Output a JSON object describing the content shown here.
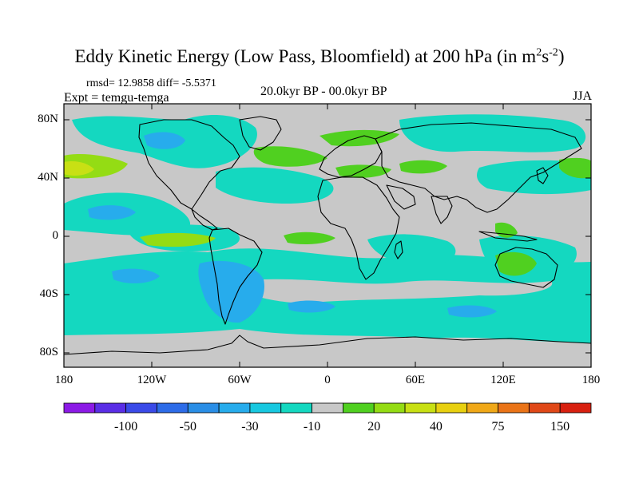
{
  "title": {
    "main": "Eddy Kinetic Energy (Low Pass, Bloomfield) at 200 hPa (in m",
    "sup1": "2",
    "mid": "s",
    "sup2": "-2",
    "end": ")"
  },
  "stats": "rmsd= 12.9858 diff= -5.5371",
  "expt": "Expt = temgu-temga",
  "period": "20.0kyr BP - 00.0kyr BP",
  "season": "JJA",
  "chart_data": {
    "type": "heatmap",
    "title": "Eddy Kinetic Energy (Low Pass, Bloomfield) at 200 hPa (in m^2 s^-2)",
    "subtitle": "20.0kyr BP - 00.0kyr BP",
    "xlim": [
      -180,
      180
    ],
    "ylim": [
      -90,
      90
    ],
    "lat_ticks": [
      "80N",
      "40N",
      "0",
      "40S",
      "80S"
    ],
    "lat_values": [
      80,
      40,
      0,
      -40,
      -80
    ],
    "lon_ticks": [
      "180",
      "120W",
      "60W",
      "0",
      "60E",
      "120E",
      "180"
    ],
    "lon_values": [
      -180,
      -120,
      -60,
      0,
      60,
      120,
      180
    ],
    "levels": [
      -150,
      -100,
      -75,
      -50,
      -40,
      -30,
      -20,
      -10,
      10,
      20,
      30,
      40,
      50,
      75,
      100,
      150
    ],
    "colorbar_labels": [
      "-100",
      "-50",
      "-30",
      "-10",
      "20",
      "40",
      "75",
      "150"
    ],
    "colors": [
      "#8c1ae6",
      "#5a2ee6",
      "#3a4ae8",
      "#2d6ce8",
      "#2a8ee6",
      "#27acec",
      "#18c8e0",
      "#14d8c0",
      "#c8c8c8",
      "#50d020",
      "#94dc14",
      "#c8e014",
      "#e8d010",
      "#f0a818",
      "#ea7418",
      "#e04818",
      "#d82010"
    ],
    "background_color": "#c8c8c8"
  }
}
